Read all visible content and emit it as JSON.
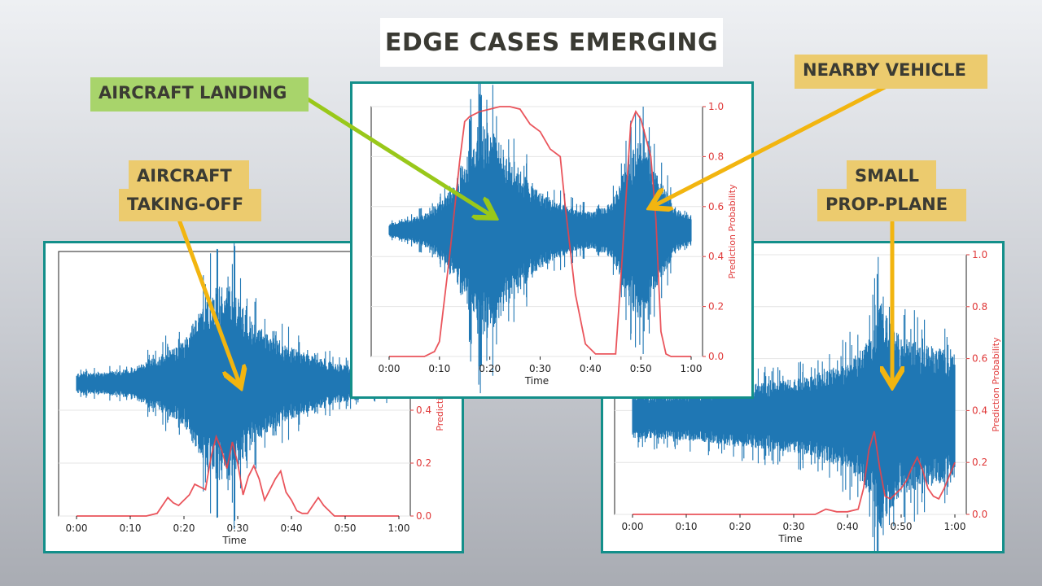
{
  "title": "EDGE CASES EMERGING",
  "labels": {
    "aircraft_landing": "AIRCRAFT LANDING",
    "nearby_vehicle": "NEARBY VEHICLE",
    "aircraft_takeoff_line1": "AIRCRAFT",
    "aircraft_takeoff_line2": "TAKING-OFF",
    "small_prop_line1": "SMALL",
    "small_prop_line2": "PROP-PLANE"
  },
  "colors": {
    "waveform": "#1f77b4",
    "probability": "#e8424a",
    "panel_border": "#138f8a",
    "label_gold": "#eccb6e",
    "label_green": "#a8d46b",
    "arrow_gold": "#f2b510",
    "arrow_green": "#99c81a"
  },
  "chart_data": [
    {
      "id": "takeoff",
      "type": "line",
      "xlabel": "Time",
      "ylabel_right": "Prediction Probability",
      "x_ticks": [
        "0:00",
        "0:10",
        "0:20",
        "0:30",
        "0:40",
        "0:50",
        "1:00"
      ],
      "y_right_ticks": [
        "0.0",
        "0.2",
        "0.4"
      ],
      "ylim_right": [
        0,
        1
      ],
      "series": [
        {
          "name": "Prediction Probability",
          "x": [
            0,
            5,
            10,
            13,
            15,
            16,
            17,
            18,
            19,
            20,
            21,
            22,
            23,
            24,
            25,
            26,
            27,
            28,
            29,
            30,
            31,
            32,
            33,
            34,
            35,
            36,
            37,
            38,
            39,
            40,
            41,
            42,
            43,
            44,
            45,
            46,
            47,
            48,
            50,
            55,
            60
          ],
          "y": [
            0,
            0,
            0,
            0,
            0.01,
            0.04,
            0.07,
            0.05,
            0.04,
            0.06,
            0.08,
            0.12,
            0.11,
            0.1,
            0.22,
            0.3,
            0.25,
            0.18,
            0.28,
            0.2,
            0.08,
            0.15,
            0.19,
            0.14,
            0.06,
            0.1,
            0.14,
            0.17,
            0.09,
            0.06,
            0.02,
            0.01,
            0.01,
            0.04,
            0.07,
            0.04,
            0.02,
            0,
            0,
            0,
            0
          ]
        }
      ],
      "waveform_envelope": {
        "t": [
          0,
          5,
          10,
          15,
          20,
          23,
          26,
          28,
          30,
          33,
          36,
          40,
          45,
          50,
          55,
          60
        ],
        "amp": [
          0.08,
          0.09,
          0.12,
          0.22,
          0.35,
          0.6,
          0.8,
          0.9,
          0.75,
          0.5,
          0.4,
          0.3,
          0.2,
          0.15,
          0.12,
          0.1
        ]
      }
    },
    {
      "id": "landing",
      "type": "line",
      "xlabel": "Time",
      "ylabel_right": "Prediction Probability",
      "x_ticks": [
        "0:00",
        "0:10",
        "0:20",
        "0:30",
        "0:40",
        "0:50",
        "1:00"
      ],
      "y_right_ticks": [
        "0.0",
        "0.2",
        "0.4",
        "0.6",
        "0.8",
        "1.0"
      ],
      "ylim_right": [
        0,
        1
      ],
      "series": [
        {
          "name": "Prediction Probability",
          "x": [
            0,
            5,
            7,
            9,
            10,
            12,
            14,
            15,
            16,
            18,
            20,
            22,
            24,
            26,
            28,
            30,
            32,
            34,
            35,
            37,
            39,
            41,
            43,
            45,
            46,
            48,
            49,
            50,
            52,
            53,
            54,
            55,
            56,
            58,
            60
          ],
          "y": [
            0,
            0,
            0,
            0.02,
            0.06,
            0.4,
            0.78,
            0.94,
            0.96,
            0.98,
            0.99,
            1.0,
            1.0,
            0.99,
            0.93,
            0.9,
            0.83,
            0.8,
            0.6,
            0.25,
            0.05,
            0.01,
            0.01,
            0.01,
            0.3,
            0.93,
            0.98,
            0.95,
            0.8,
            0.55,
            0.1,
            0.01,
            0,
            0,
            0
          ]
        }
      ],
      "waveform_envelope": {
        "t": [
          0,
          3,
          8,
          12,
          15,
          18,
          20,
          23,
          27,
          30,
          35,
          40,
          44,
          46,
          48,
          50,
          52,
          54,
          57,
          60
        ],
        "amp": [
          0.06,
          0.08,
          0.15,
          0.32,
          0.6,
          0.9,
          0.85,
          0.65,
          0.45,
          0.32,
          0.2,
          0.15,
          0.22,
          0.42,
          0.65,
          0.75,
          0.55,
          0.4,
          0.18,
          0.1
        ]
      }
    },
    {
      "id": "prop_plane",
      "type": "line",
      "xlabel": "Time",
      "ylabel_right": "Prediction Probability",
      "x_ticks": [
        "0:00",
        "0:10",
        "0:20",
        "0:30",
        "0:40",
        "0:50",
        "1:00"
      ],
      "y_right_ticks": [
        "0.0",
        "0.2",
        "0.4",
        "0.6",
        "0.8",
        "1.0"
      ],
      "ylim_right": [
        0,
        1
      ],
      "series": [
        {
          "name": "Prediction Probability",
          "x": [
            0,
            10,
            20,
            30,
            34,
            36,
            38,
            40,
            42,
            43,
            44,
            45,
            46,
            47,
            48,
            49,
            50,
            51,
            52,
            53,
            54,
            55,
            56,
            57,
            58,
            59,
            60
          ],
          "y": [
            0,
            0,
            0,
            0,
            0,
            0.02,
            0.01,
            0.01,
            0.02,
            0.1,
            0.25,
            0.32,
            0.18,
            0.07,
            0.06,
            0.08,
            0.1,
            0.13,
            0.18,
            0.22,
            0.17,
            0.1,
            0.07,
            0.06,
            0.1,
            0.15,
            0.2
          ]
        }
      ],
      "waveform_envelope": {
        "t": [
          0,
          10,
          20,
          30,
          35,
          40,
          43,
          45,
          46,
          48,
          50,
          54,
          57,
          60
        ],
        "amp": [
          0.18,
          0.2,
          0.25,
          0.3,
          0.35,
          0.45,
          0.55,
          0.75,
          0.95,
          0.8,
          0.65,
          0.6,
          0.55,
          0.55
        ]
      }
    }
  ]
}
